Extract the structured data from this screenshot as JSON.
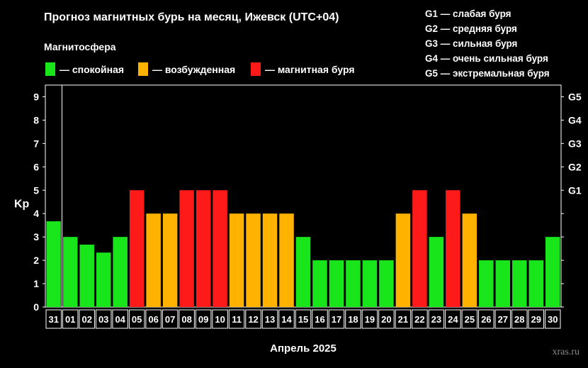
{
  "header": {
    "title": "Прогноз магнитных бурь на месяц, Ижевск (UTC+04)",
    "legend_title": "Магнитосфера",
    "legend": [
      {
        "label": "— спокойная",
        "color": "#18e61b"
      },
      {
        "label": "— возбужденная",
        "color": "#ffb300"
      },
      {
        "label": "— магнитная буря",
        "color": "#ff1a1a"
      }
    ]
  },
  "storm_legend": [
    "G1 — слабая буря",
    "G2 — средняя буря",
    "G3 — сильная буря",
    "G4 — очень сильная буря",
    "G5 — экстремальная буря"
  ],
  "watermark": "xras.ru",
  "colors": {
    "calm": "#18e61b",
    "excited": "#ffb300",
    "storm": "#ff1a1a"
  },
  "chart_data": {
    "type": "bar",
    "title": "Прогноз магнитных бурь на месяц, Ижевск (UTC+04)",
    "xlabel": "Апрель 2025",
    "ylabel": "Kp",
    "ylim": [
      0,
      9.5
    ],
    "yticks": [
      0,
      1,
      2,
      3,
      4,
      5,
      6,
      7,
      8,
      9
    ],
    "right_ticks": [
      {
        "value": 5,
        "label": "G1"
      },
      {
        "value": 6,
        "label": "G2"
      },
      {
        "value": 7,
        "label": "G3"
      },
      {
        "value": 8,
        "label": "G4"
      },
      {
        "value": 9,
        "label": "G5"
      }
    ],
    "grid": false,
    "categories": [
      "31",
      "01",
      "02",
      "03",
      "04",
      "05",
      "06",
      "07",
      "08",
      "09",
      "10",
      "11",
      "12",
      "13",
      "14",
      "15",
      "16",
      "17",
      "18",
      "19",
      "20",
      "21",
      "22",
      "23",
      "24",
      "25",
      "26",
      "27",
      "28",
      "29",
      "30"
    ],
    "values": [
      3.67,
      3,
      2.67,
      2.33,
      3,
      5,
      4,
      4,
      5,
      5,
      5,
      4,
      4,
      4,
      4,
      3,
      2,
      2,
      2,
      2,
      2,
      4,
      5,
      3,
      5,
      4,
      2,
      2,
      2,
      2,
      3
    ],
    "levels": [
      "calm",
      "calm",
      "calm",
      "calm",
      "calm",
      "storm",
      "excited",
      "excited",
      "storm",
      "storm",
      "storm",
      "excited",
      "excited",
      "excited",
      "excited",
      "calm",
      "calm",
      "calm",
      "calm",
      "calm",
      "calm",
      "excited",
      "storm",
      "calm",
      "storm",
      "excited",
      "calm",
      "calm",
      "calm",
      "calm",
      "calm"
    ]
  }
}
